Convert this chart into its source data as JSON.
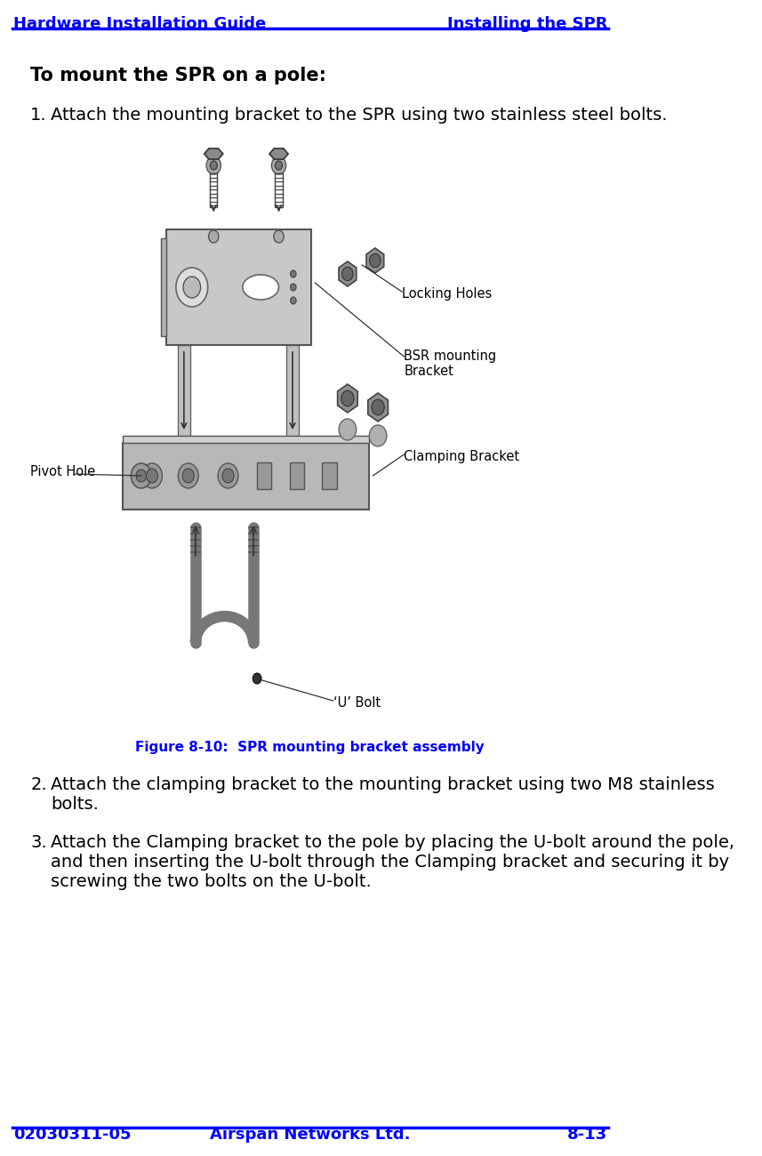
{
  "header_left": "Hardware Installation Guide",
  "header_right": "Installing the SPR",
  "footer_left": "02030311-05",
  "footer_center": "Airspan Networks Ltd.",
  "footer_right": "8-13",
  "header_color": "#0000FF",
  "line_color": "#0000FF",
  "title_bold": "To mount the SPR on a pole:",
  "step1": "Attach the mounting bracket to the SPR using two stainless steel bolts.",
  "step2": "Attach the clamping bracket to the mounting bracket using two M8 stainless\nbolts.",
  "step3": "Attach the Clamping bracket to the pole by placing the U-bolt around the pole,\nand then inserting the U-bolt through the Clamping bracket and securing it by\nscrewing the two bolts on the U-bolt.",
  "figure_caption": "Figure 8-10:  SPR mounting bracket assembly",
  "figure_caption_color": "#0000FF",
  "label_pivot": "Pivot Hole",
  "label_ubolt": "‘U’ Bolt",
  "label_locking": "Locking Holes",
  "label_bsr": "BSR mounting\nBracket",
  "label_clamping": "Clamping Bracket",
  "bg_color": "#FFFFFF",
  "text_color": "#000000",
  "body_font_size": 13,
  "header_font_size": 13,
  "title_font_size": 14
}
